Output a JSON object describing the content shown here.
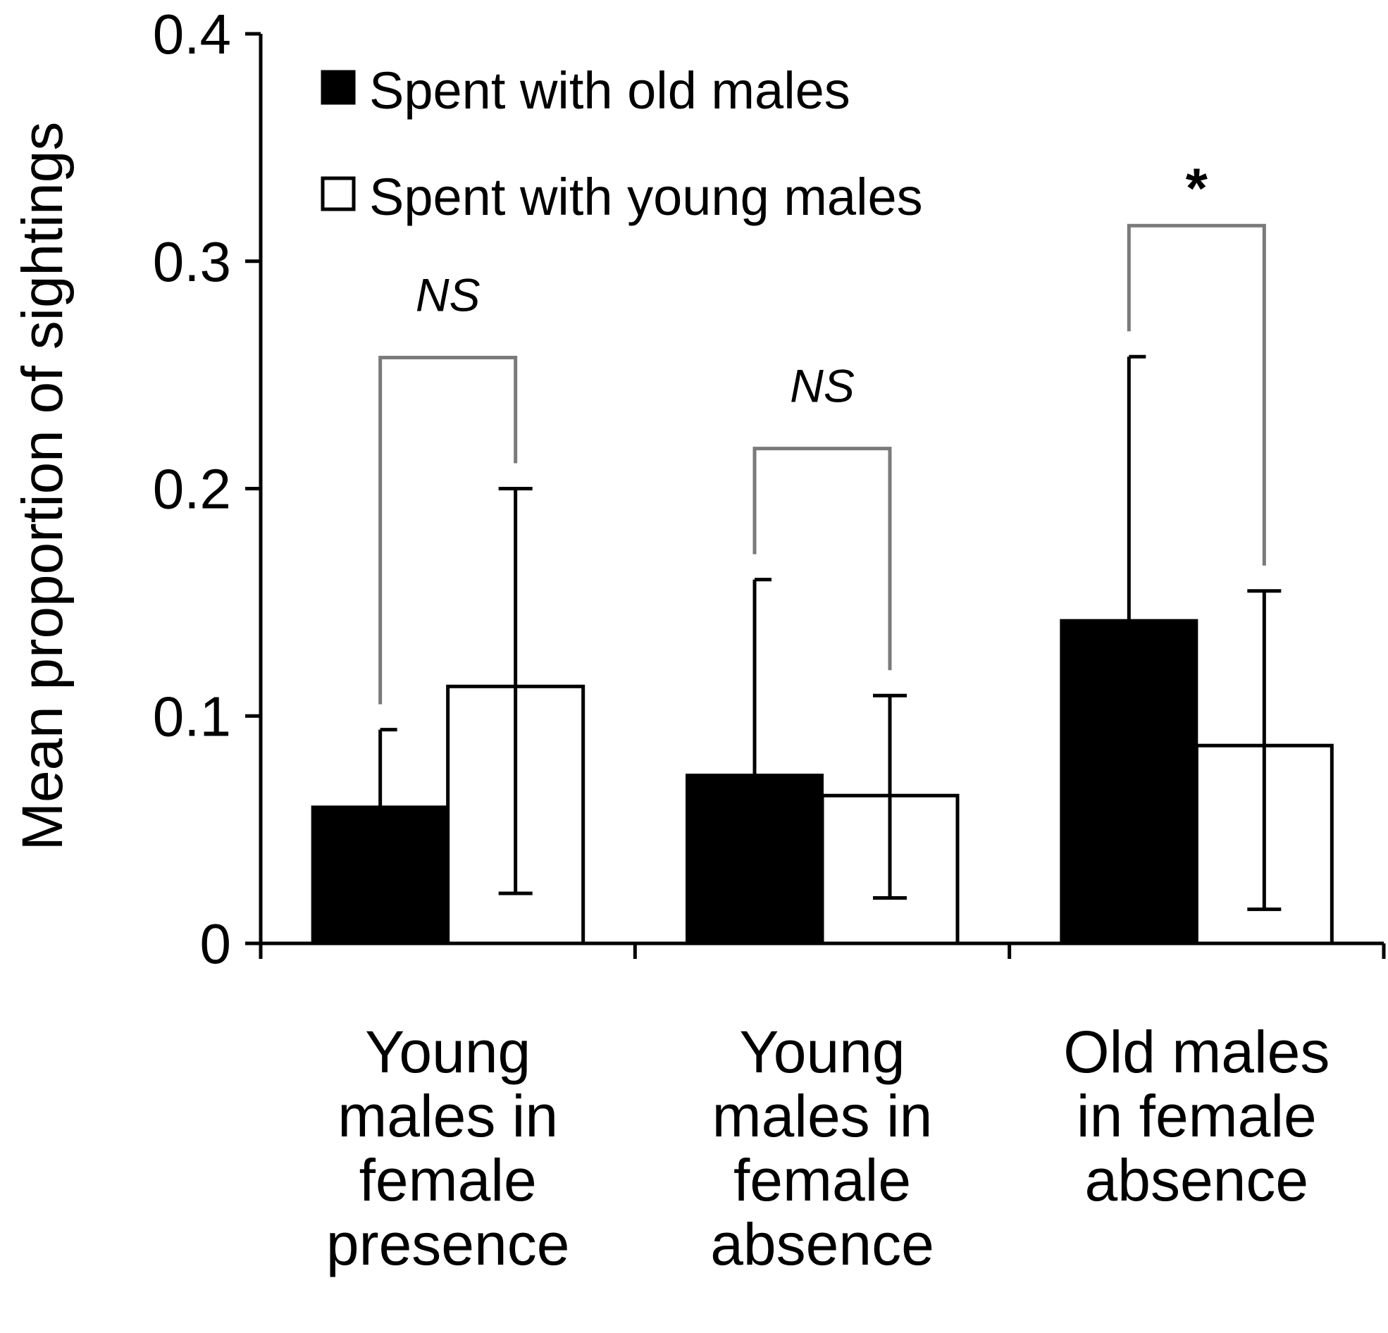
{
  "chart_data": {
    "type": "bar",
    "title": "",
    "xlabel": "",
    "ylabel": "Mean proportion of sightings",
    "ylim": [
      0,
      0.4
    ],
    "yticks": [
      "0",
      "0.1",
      "0.2",
      "0.3",
      "0.4"
    ],
    "grid": false,
    "legend_position": "top-left",
    "categories": [
      [
        "Young",
        "males in",
        "female",
        "presence"
      ],
      [
        "Young",
        "males in",
        "female",
        "absence"
      ],
      [
        "Old males",
        "in female",
        "absence"
      ]
    ],
    "series": [
      {
        "name": "Spent with  old males",
        "color": "#000000",
        "fill": "solid",
        "values": [
          0.06,
          0.074,
          0.142
        ],
        "error_upper": [
          0.094,
          0.16,
          0.258
        ]
      },
      {
        "name": "Spent with  young males",
        "color": "#ffffff",
        "fill": "hollow",
        "values": [
          0.113,
          0.065,
          0.087
        ],
        "error_lower": [
          0.022,
          0.02,
          0.015
        ],
        "error_upper": [
          0.2,
          0.109,
          0.155
        ]
      }
    ],
    "significance": [
      {
        "label": "NS",
        "style": "italic"
      },
      {
        "label": "NS",
        "style": "italic"
      },
      {
        "label": "*",
        "style": "bold"
      }
    ],
    "annotation_color": "#7a7a7a"
  }
}
